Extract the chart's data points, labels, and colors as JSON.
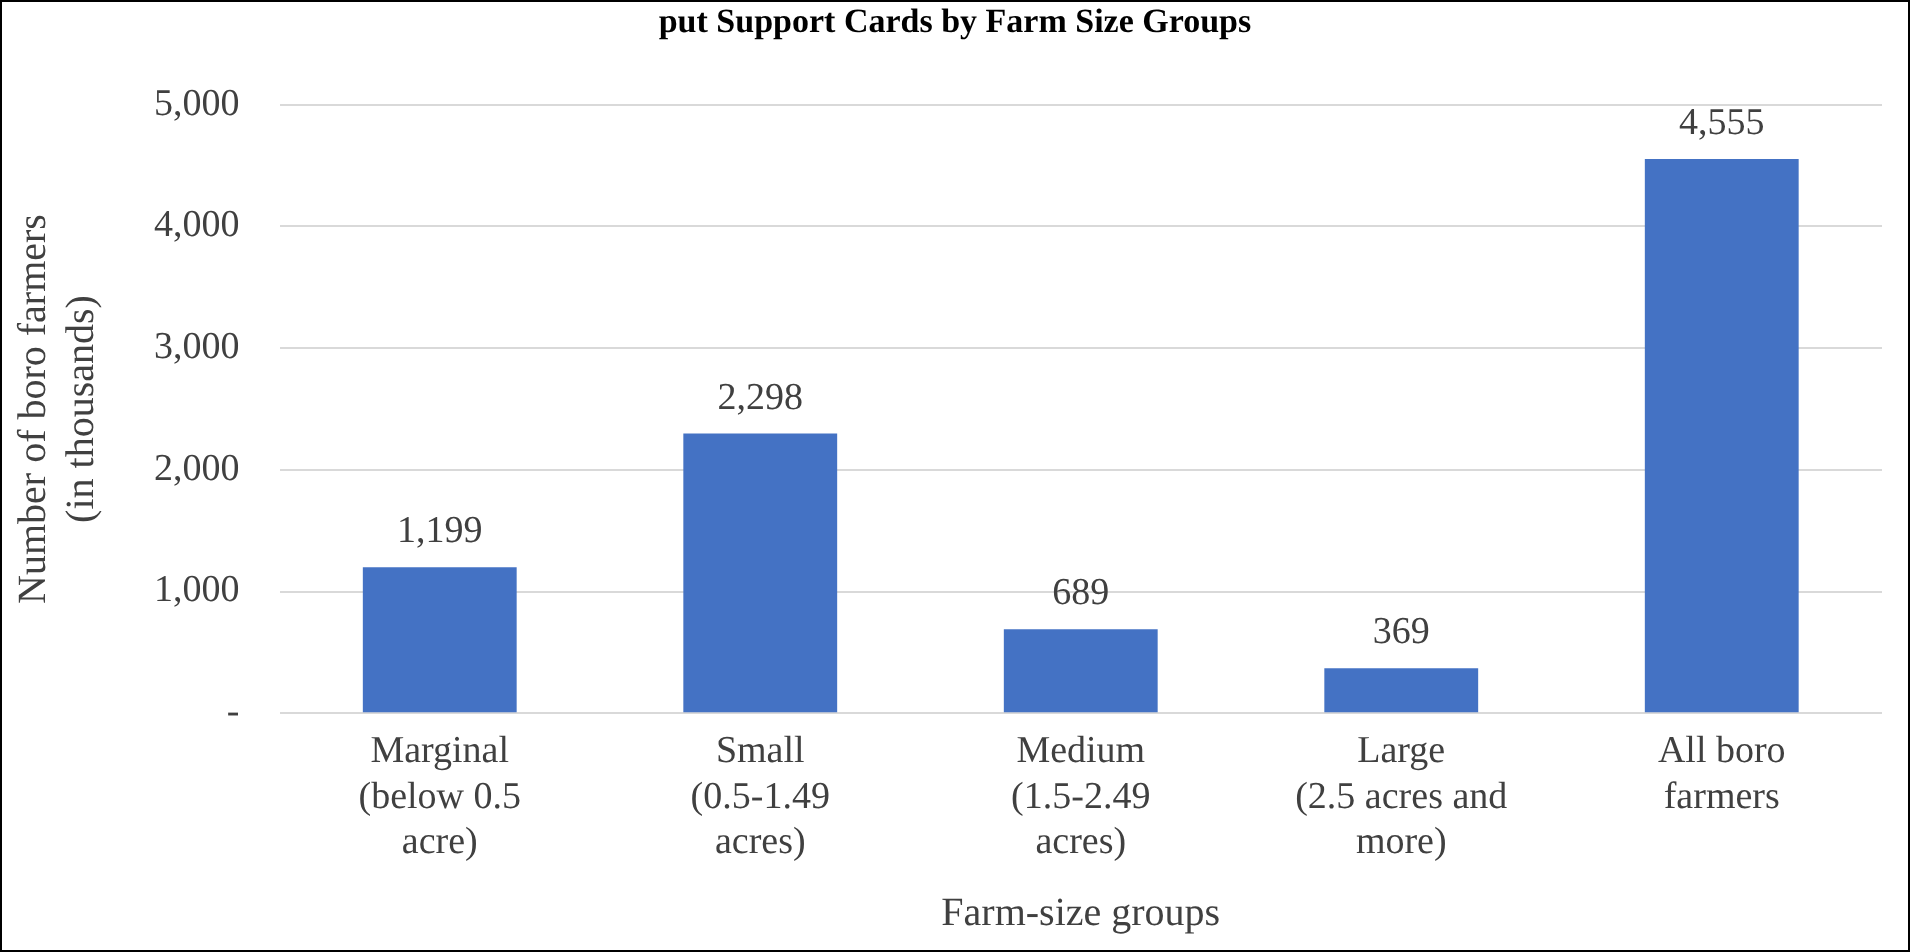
{
  "chart_data": {
    "type": "bar",
    "title": "put Support Cards by Farm Size Groups",
    "xlabel": "Farm-size groups",
    "ylabel": "Number of boro farmers (in thousands)",
    "categories": [
      "Marginal (below 0.5 acre)",
      "Small (0.5-1.49 acres)",
      "Medium (1.5-2.49 acres)",
      "Large (2.5 acres and more)",
      "All boro farmers"
    ],
    "values": [
      1199,
      2298,
      689,
      369,
      4555
    ],
    "color": "#4472c4",
    "ylim": [
      0,
      5000
    ],
    "yticks": [
      {
        "value": 0,
        "label": "-"
      },
      {
        "value": 1000,
        "label": "1,000"
      },
      {
        "value": 2000,
        "label": "2,000"
      },
      {
        "value": 3000,
        "label": "3,000"
      },
      {
        "value": 4000,
        "label": "4,000"
      },
      {
        "value": 5000,
        "label": "5,000"
      }
    ],
    "value_labels": [
      "1,199",
      "2,298",
      "689",
      "369",
      "4,555"
    ],
    "grid": "y",
    "legend": false
  }
}
